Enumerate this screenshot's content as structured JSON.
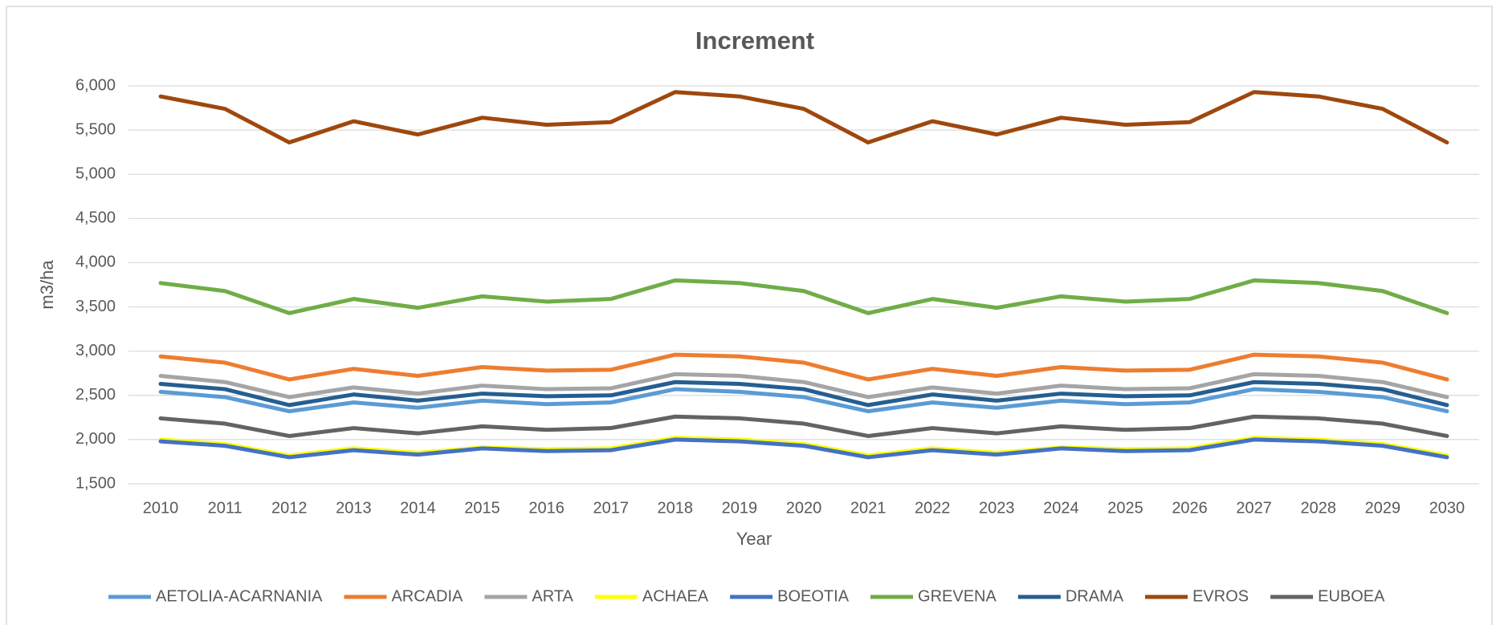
{
  "chart_data": {
    "type": "line",
    "title": "Increment",
    "x_label": "Year",
    "y_label": "m3/ha",
    "categories": [
      "2010",
      "2011",
      "2012",
      "2013",
      "2014",
      "2015",
      "2016",
      "2017",
      "2018",
      "2019",
      "2020",
      "2021",
      "2022",
      "2023",
      "2024",
      "2025",
      "2026",
      "2027",
      "2028",
      "2029",
      "2030"
    ],
    "ylim": [
      1500,
      6000
    ],
    "yticks": [
      {
        "value": 1500,
        "label": "1,500"
      },
      {
        "value": 2000,
        "label": "2,000"
      },
      {
        "value": 2500,
        "label": "2,500"
      },
      {
        "value": 3000,
        "label": "3,000"
      },
      {
        "value": 3500,
        "label": "3,500"
      },
      {
        "value": 4000,
        "label": "4,000"
      },
      {
        "value": 4500,
        "label": "4,500"
      },
      {
        "value": 5000,
        "label": "5,000"
      },
      {
        "value": 5500,
        "label": "5,500"
      },
      {
        "value": 6000,
        "label": "6,000"
      }
    ],
    "grid": true,
    "legend": "bottom",
    "series": [
      {
        "name": "AETOLIA-ACARNANIA",
        "color": "#5b9bd5",
        "values": [
          2540,
          2480,
          2320,
          2420,
          2360,
          2440,
          2400,
          2420,
          2570,
          2540,
          2480,
          2320,
          2420,
          2360,
          2440,
          2400,
          2420,
          2570,
          2540,
          2480,
          2320
        ]
      },
      {
        "name": "ARCADIA",
        "color": "#ed7d31",
        "values": [
          2940,
          2870,
          2680,
          2800,
          2720,
          2820,
          2780,
          2790,
          2960,
          2940,
          2870,
          2680,
          2800,
          2720,
          2820,
          2780,
          2790,
          2960,
          2940,
          2870,
          2680
        ]
      },
      {
        "name": "ARTA",
        "color": "#a5a5a5",
        "values": [
          2720,
          2650,
          2480,
          2590,
          2520,
          2610,
          2570,
          2580,
          2740,
          2720,
          2650,
          2480,
          2590,
          2520,
          2610,
          2570,
          2580,
          2740,
          2720,
          2650,
          2480
        ]
      },
      {
        "name": "ACHAEA",
        "color": "#ffff00",
        "values": [
          2000,
          1950,
          1820,
          1900,
          1850,
          1910,
          1890,
          1900,
          2020,
          2000,
          1950,
          1820,
          1900,
          1850,
          1910,
          1890,
          1900,
          2020,
          2000,
          1950,
          1820
        ]
      },
      {
        "name": "BOEOTIA",
        "color": "#4472c4",
        "values": [
          1980,
          1930,
          1800,
          1880,
          1830,
          1900,
          1870,
          1880,
          2000,
          1980,
          1930,
          1800,
          1880,
          1830,
          1900,
          1870,
          1880,
          2000,
          1980,
          1930,
          1800
        ]
      },
      {
        "name": "GREVENA",
        "color": "#70ad47",
        "values": [
          3770,
          3680,
          3430,
          3590,
          3490,
          3620,
          3560,
          3590,
          3800,
          3770,
          3680,
          3430,
          3590,
          3490,
          3620,
          3560,
          3590,
          3800,
          3770,
          3680,
          3430
        ]
      },
      {
        "name": "DRAMA",
        "color": "#255e91",
        "values": [
          2630,
          2570,
          2390,
          2510,
          2440,
          2520,
          2490,
          2500,
          2650,
          2630,
          2570,
          2390,
          2510,
          2440,
          2520,
          2490,
          2500,
          2650,
          2630,
          2570,
          2390
        ]
      },
      {
        "name": "EVROS",
        "color": "#9e480e",
        "values": [
          5880,
          5740,
          5360,
          5600,
          5450,
          5640,
          5560,
          5590,
          5930,
          5880,
          5740,
          5360,
          5600,
          5450,
          5640,
          5560,
          5590,
          5930,
          5880,
          5740,
          5360
        ]
      },
      {
        "name": "EUBOEA",
        "color": "#636363",
        "values": [
          2240,
          2180,
          2040,
          2130,
          2070,
          2150,
          2110,
          2130,
          2260,
          2240,
          2180,
          2040,
          2130,
          2070,
          2150,
          2110,
          2130,
          2260,
          2240,
          2180,
          2040
        ]
      }
    ]
  }
}
